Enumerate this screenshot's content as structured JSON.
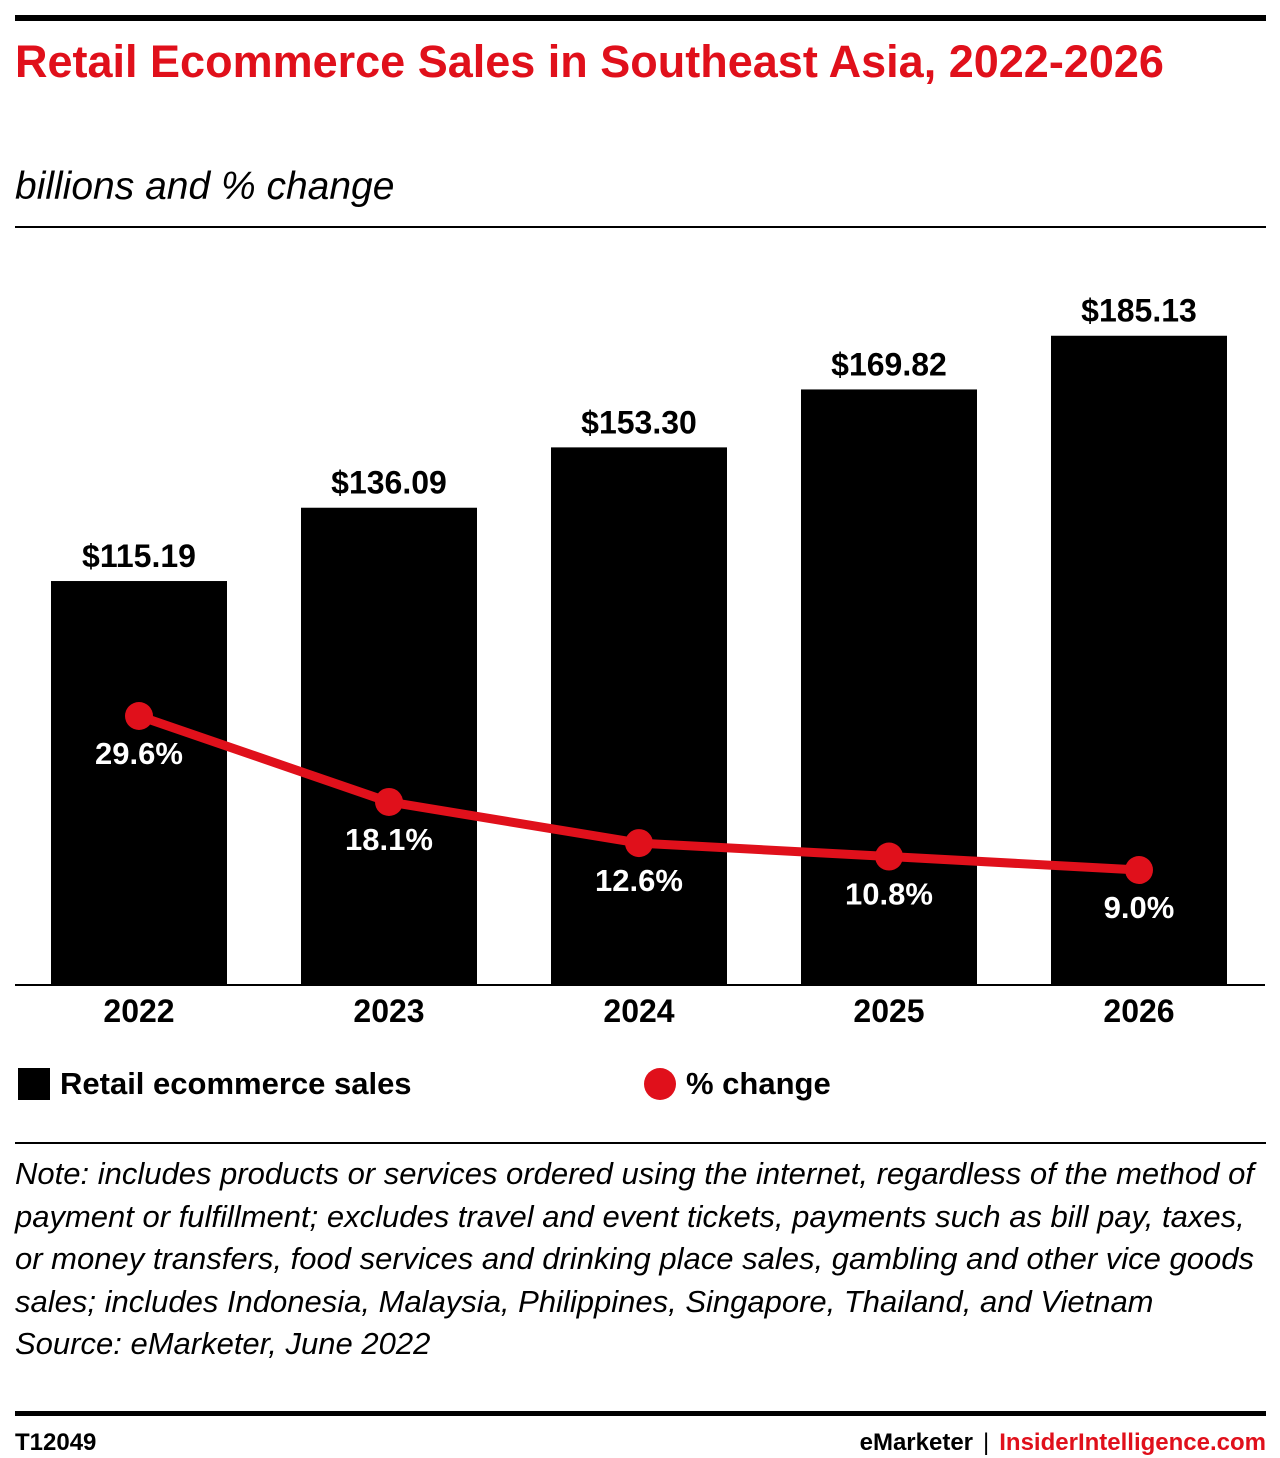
{
  "header": {
    "title": "Retail Ecommerce Sales in Southeast Asia, 2022-2026",
    "subtitle": "billions and % change"
  },
  "colors": {
    "accent": "#e0101b",
    "bars": "#000000",
    "line": "#e0101b"
  },
  "chart_data": {
    "type": "bar",
    "title": "Retail Ecommerce Sales in Southeast Asia, 2022-2026",
    "subtitle": "billions and % change",
    "categories": [
      "2022",
      "2023",
      "2024",
      "2025",
      "2026"
    ],
    "series": [
      {
        "name": "Retail ecommerce sales",
        "type": "bar",
        "values": [
          115.19,
          136.09,
          153.3,
          169.82,
          185.13
        ],
        "labels": [
          "$115.19",
          "$136.09",
          "$153.30",
          "$169.82",
          "$185.13"
        ]
      },
      {
        "name": "% change",
        "type": "line",
        "values": [
          29.6,
          18.1,
          12.6,
          10.8,
          9.0
        ],
        "labels": [
          "29.6%",
          "18.1%",
          "12.6%",
          "10.8%",
          "9.0%"
        ]
      }
    ],
    "legend_position": "bottom",
    "grid": false
  },
  "legend": {
    "bars_label": "Retail ecommerce sales",
    "pct_label": "% change"
  },
  "note": {
    "text": "Note: includes products or services ordered using the internet, regardless of the method of payment or fulfillment; excludes travel and event tickets, payments such as bill pay, taxes, or money transfers, food services and drinking place sales, gambling and other vice goods sales; includes Indonesia, Malaysia, Philippines, Singapore, Thailand, and Vietnam",
    "source": "Source: eMarketer, June 2022"
  },
  "footer": {
    "id": "T12049",
    "brand_left": "eMarketer",
    "separator": "|",
    "brand_right": "InsiderIntelligence.com"
  }
}
